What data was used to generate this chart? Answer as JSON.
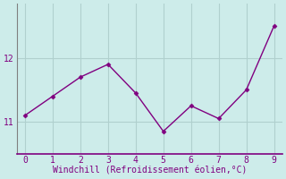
{
  "x": [
    0,
    1,
    2,
    3,
    4,
    5,
    6,
    7,
    8,
    9
  ],
  "y": [
    11.1,
    11.4,
    11.7,
    11.9,
    11.45,
    10.85,
    11.25,
    11.05,
    11.5,
    12.5
  ],
  "line_color": "#800080",
  "marker": "D",
  "marker_size": 2.5,
  "linewidth": 1.0,
  "bg_color": "#cdecea",
  "grid_color": "#b0d0ce",
  "spine_color": "#808080",
  "bottom_spine_color": "#800080",
  "xlabel": "Windchill (Refroidissement éolien,°C)",
  "xlabel_color": "#800080",
  "xlabel_fontsize": 7,
  "tick_color": "#800080",
  "tick_fontsize": 7,
  "ytick_labels": [
    11,
    12
  ],
  "ylim": [
    10.5,
    12.85
  ],
  "xlim": [
    -0.3,
    9.3
  ]
}
